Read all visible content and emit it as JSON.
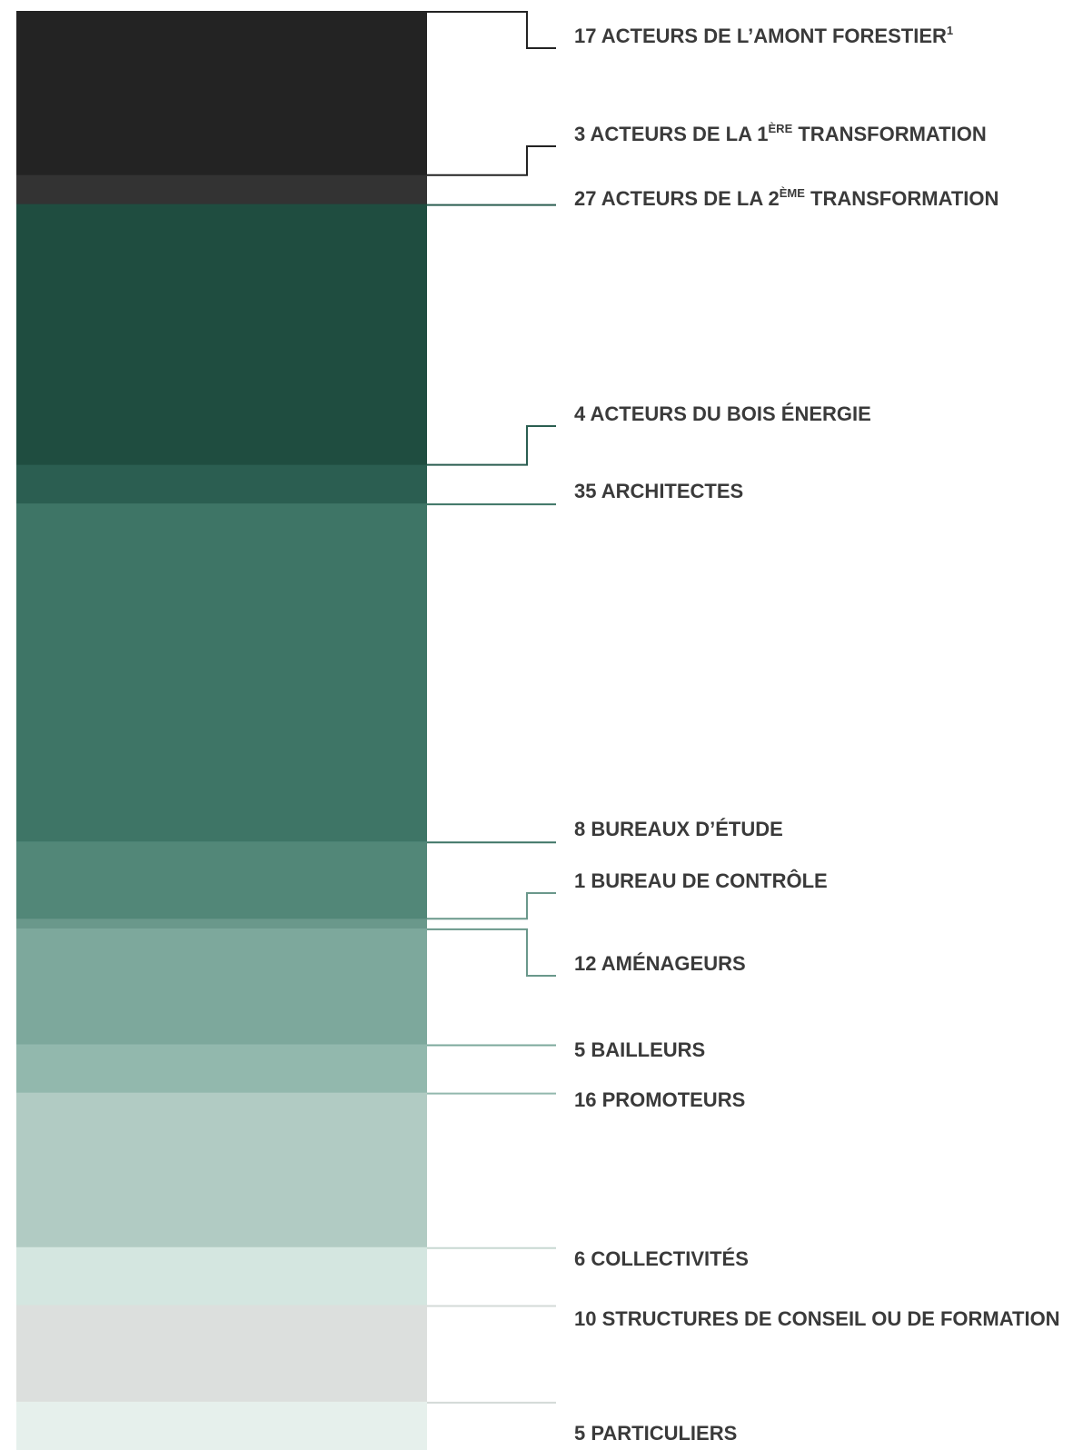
{
  "chart_data": {
    "type": "bar",
    "orientation": "stacked-vertical",
    "title": "",
    "xlabel": "",
    "ylabel": "",
    "ylim": [
      0,
      149
    ],
    "grid": false,
    "legend": "right, connector lines to each segment",
    "categories": [
      "ACTEURS DE L’AMONT FORESTIER",
      "ACTEURS DE LA 1ÈRE TRANSFORMATION",
      "ACTEURS DE LA 2ÈME TRANSFORMATION",
      "ACTEURS DU BOIS ÉNERGIE",
      "ARCHITECTES",
      "BUREAUX D’ÉTUDE",
      "BUREAU DE CONTRÔLE",
      "AMÉNAGEURS",
      "BAILLEURS",
      "PROMOTEURS",
      "COLLECTIVITÉS",
      "STRUCTURES DE CONSEIL OU DE FORMATION",
      "PARTICULIERS"
    ],
    "series": [
      {
        "values": [
          17,
          3,
          27,
          4,
          35,
          8,
          1,
          12,
          5,
          16,
          6,
          10,
          5
        ]
      }
    ],
    "labels": [
      {
        "count": "17",
        "text": "ACTEURS DE L’AMONT FORESTIER",
        "sup": "1",
        "after": ""
      },
      {
        "count": "3",
        "text": "ACTEURS DE LA 1",
        "sup": "ÈRE",
        "after": " TRANSFORMATION"
      },
      {
        "count": "27",
        "text": "ACTEURS DE LA 2",
        "sup": "ÈME",
        "after": " TRANSFORMATION"
      },
      {
        "count": "4",
        "text": "ACTEURS DU BOIS ÉNERGIE",
        "sup": "",
        "after": ""
      },
      {
        "count": "35",
        "text": "ARCHITECTES",
        "sup": "",
        "after": ""
      },
      {
        "count": "8",
        "text": "BUREAUX D’ÉTUDE",
        "sup": "",
        "after": ""
      },
      {
        "count": "1",
        "text": "BUREAU DE CONTRÔLE",
        "sup": "",
        "after": ""
      },
      {
        "count": "12",
        "text": "AMÉNAGEURS",
        "sup": "",
        "after": ""
      },
      {
        "count": "5",
        "text": "BAILLEURS",
        "sup": "",
        "after": ""
      },
      {
        "count": "16",
        "text": "PROMOTEURS",
        "sup": "",
        "after": ""
      },
      {
        "count": "6",
        "text": "COLLECTIVITÉS",
        "sup": "",
        "after": ""
      },
      {
        "count": "10",
        "text": "STRUCTURES DE CONSEIL OU DE FORMATION",
        "sup": "",
        "after": ""
      },
      {
        "count": "5",
        "text": "PARTICULIERS",
        "sup": "",
        "after": ""
      }
    ],
    "colors": [
      "#232323",
      "#333333",
      "#1f4d40",
      "#2b5e51",
      "#3e7566",
      "#528778",
      "#6a988b",
      "#7da89c",
      "#92b8ad",
      "#b1cbc3",
      "#d4e6e0",
      "#dcdfdd",
      "#e6f0ec"
    ],
    "line_colors": [
      "#232323",
      "#232323",
      "#2b5e51",
      "#2b5e51",
      "#3e7566",
      "#3e7566",
      "#6a988b",
      "#6a988b",
      "#7da89c",
      "#92b8ad",
      "#c8d8d2",
      "#d3dad7",
      "#d3dad7"
    ]
  }
}
